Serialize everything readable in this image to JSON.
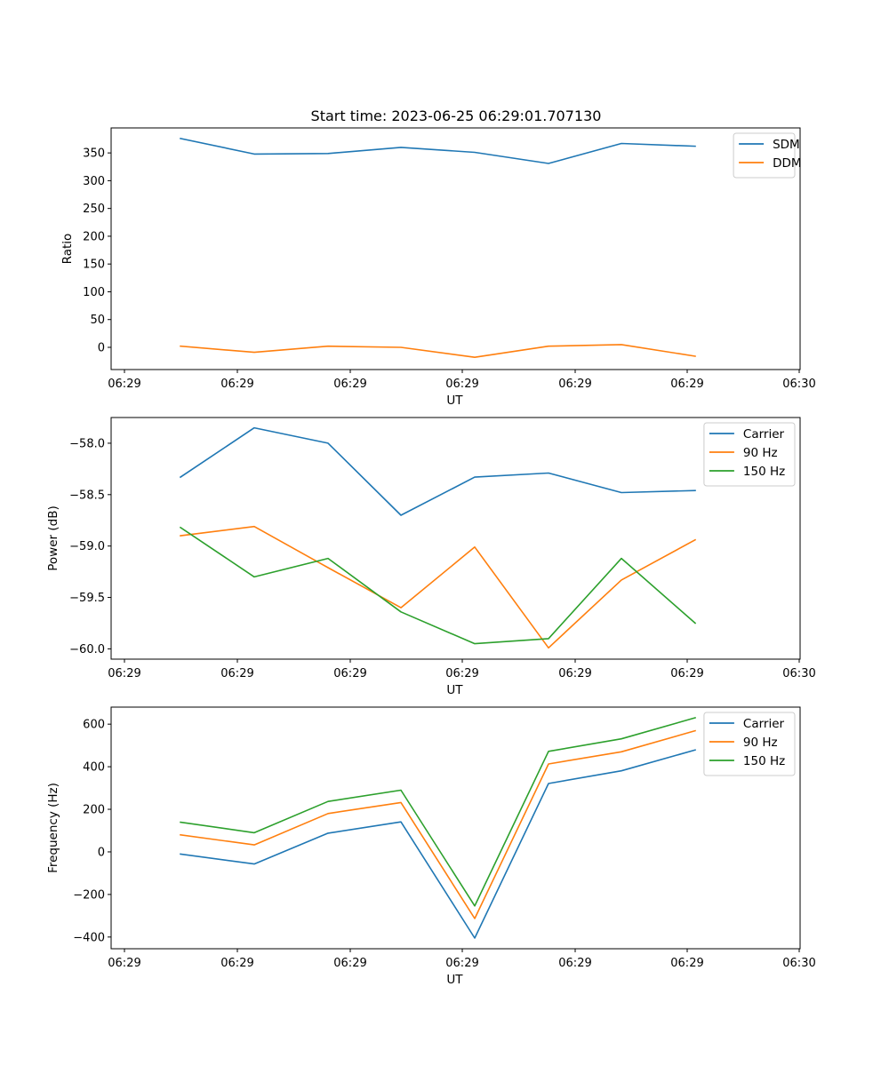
{
  "figure": {
    "title": "Start time: 2023-06-25 06:29:01.707130"
  },
  "chart_data": [
    {
      "type": "line",
      "xlabel": "UT",
      "ylabel": "Ratio",
      "x_tick_labels": [
        "06:29",
        "06:29",
        "06:29",
        "06:29",
        "06:29",
        "06:29",
        "06:30"
      ],
      "y_ticks": [
        0,
        50,
        100,
        150,
        200,
        250,
        300,
        350
      ],
      "ylim": [
        -40,
        395
      ],
      "legend_position": "upper right",
      "series": [
        {
          "name": "SDM",
          "color": "#1f77b4",
          "values": [
            376,
            348,
            349,
            360,
            351,
            331,
            367,
            362
          ]
        },
        {
          "name": "DDM",
          "color": "#ff7f0e",
          "values": [
            2,
            -9,
            2,
            0,
            -18,
            2,
            5,
            -16
          ]
        }
      ]
    },
    {
      "type": "line",
      "xlabel": "UT",
      "ylabel": "Power (dB)",
      "x_tick_labels": [
        "06:29",
        "06:29",
        "06:29",
        "06:29",
        "06:29",
        "06:29",
        "06:30"
      ],
      "y_ticks": [
        -60.0,
        -59.5,
        -59.0,
        -58.5,
        -58.0
      ],
      "y_tick_labels": [
        "−60.0",
        "−59.5",
        "−59.0",
        "−58.5",
        "−58.0"
      ],
      "ylim": [
        -60.1,
        -57.75
      ],
      "legend_position": "upper right",
      "series": [
        {
          "name": "Carrier",
          "color": "#1f77b4",
          "values": [
            -58.33,
            -57.85,
            -58.0,
            -58.7,
            -58.33,
            -58.29,
            -58.48,
            -58.46
          ]
        },
        {
          "name": "90 Hz",
          "color": "#ff7f0e",
          "values": [
            -58.9,
            -58.81,
            -59.21,
            -59.6,
            -59.01,
            -59.99,
            -59.33,
            -58.94
          ]
        },
        {
          "name": "150 Hz",
          "color": "#2ca02c",
          "values": [
            -58.82,
            -59.3,
            -59.12,
            -59.64,
            -59.95,
            -59.9,
            -59.12,
            -59.75
          ]
        }
      ]
    },
    {
      "type": "line",
      "xlabel": "UT",
      "ylabel": "Frequency (Hz)",
      "x_tick_labels": [
        "06:29",
        "06:29",
        "06:29",
        "06:29",
        "06:29",
        "06:29",
        "06:30"
      ],
      "y_ticks": [
        -400,
        -200,
        0,
        200,
        400,
        600
      ],
      "y_tick_labels": [
        "−400",
        "−200",
        "0",
        "200",
        "400",
        "600"
      ],
      "ylim": [
        -455,
        680
      ],
      "legend_position": "upper right",
      "series": [
        {
          "name": "Carrier",
          "color": "#1f77b4",
          "values": [
            -10,
            -57,
            88,
            141,
            -405,
            321,
            381,
            479
          ]
        },
        {
          "name": "90 Hz",
          "color": "#ff7f0e",
          "values": [
            80,
            33,
            180,
            232,
            -313,
            413,
            470,
            569
          ]
        },
        {
          "name": "150 Hz",
          "color": "#2ca02c",
          "values": [
            139,
            90,
            237,
            290,
            -254,
            472,
            531,
            630
          ]
        }
      ]
    }
  ]
}
